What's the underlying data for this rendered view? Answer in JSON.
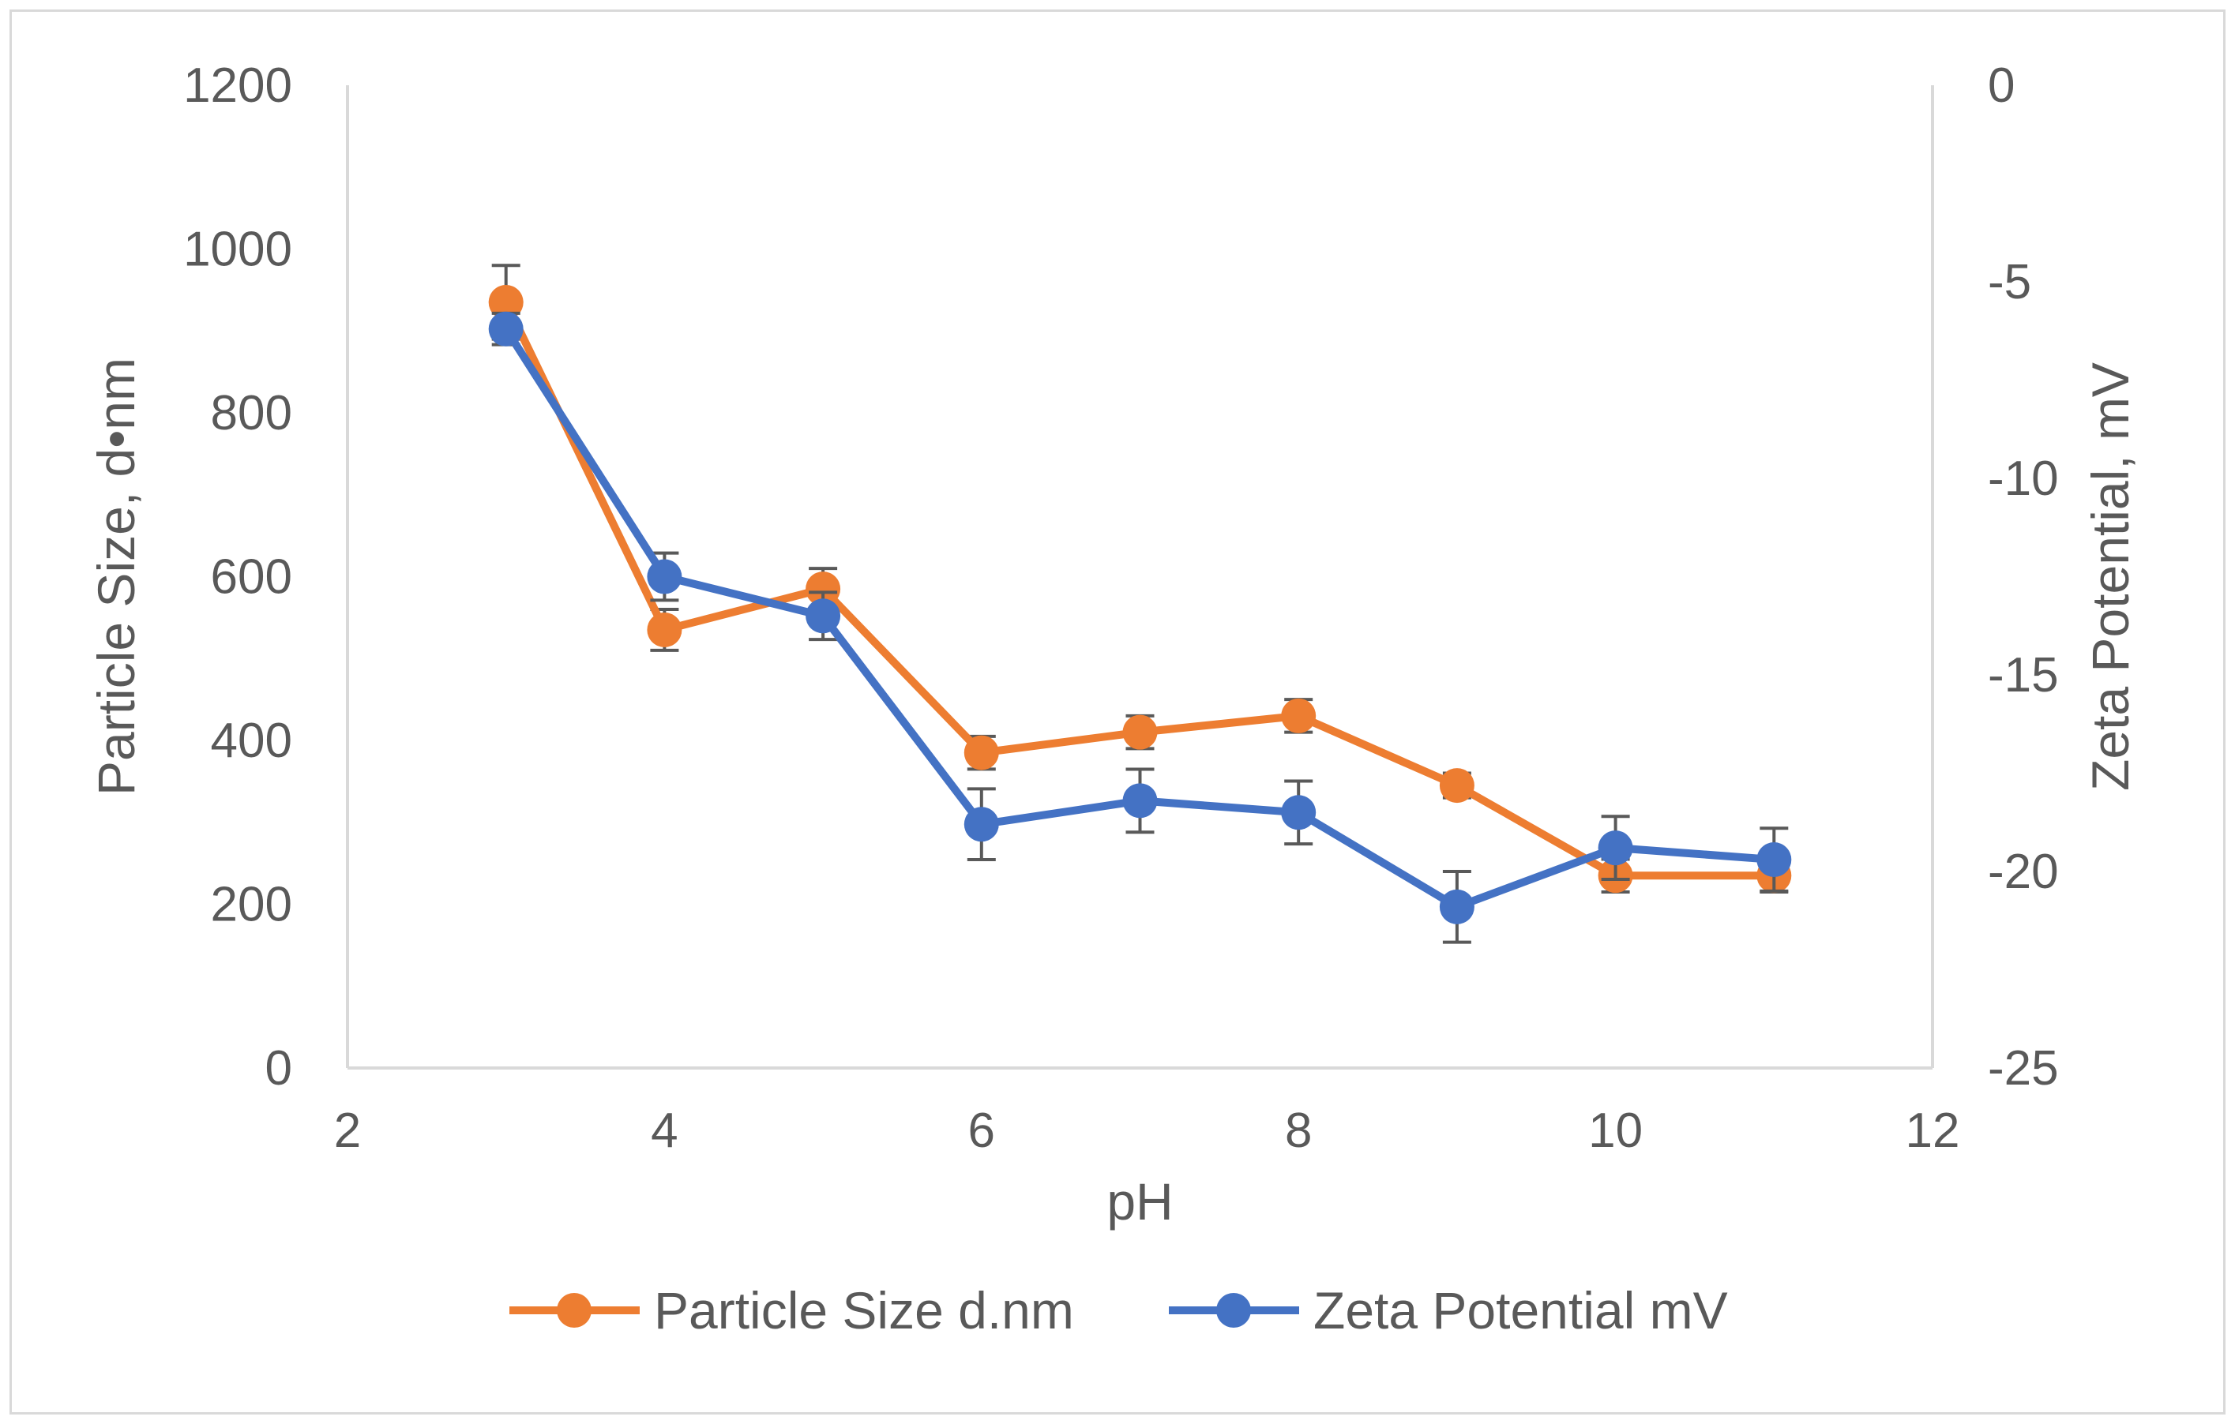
{
  "chart_data": {
    "type": "line",
    "title": "",
    "xlabel": "pH",
    "ylabel": "Particle Size, d•nm",
    "y2label": "Zeta Potential, mV",
    "xlim": [
      2,
      12
    ],
    "ylim": [
      0,
      1200
    ],
    "y2lim": [
      -25,
      0
    ],
    "x_ticks": [
      "2",
      "4",
      "6",
      "8",
      "10",
      "12"
    ],
    "y_ticks": [
      "0",
      "200",
      "400",
      "600",
      "800",
      "1000",
      "1200"
    ],
    "y2_ticks": [
      "-25",
      "-20",
      "-15",
      "-10",
      "-5",
      "0"
    ],
    "grid": false,
    "legend_position": "bottom",
    "series": [
      {
        "name": "Particle Size d.nm",
        "axis": "left",
        "color": "#ED7D31",
        "x": [
          3,
          4,
          5,
          6,
          7,
          8,
          9,
          10,
          11
        ],
        "values": [
          935,
          535,
          585,
          385,
          410,
          430,
          345,
          235,
          235
        ],
        "error": [
          45,
          25,
          25,
          20,
          20,
          20,
          15,
          20,
          20
        ]
      },
      {
        "name": "Zeta Potential mV",
        "axis": "right",
        "color": "#4472C4",
        "x": [
          3,
          4,
          5,
          6,
          7,
          8,
          9,
          10,
          11
        ],
        "values": [
          -6.2,
          -12.5,
          -13.5,
          -18.8,
          -18.2,
          -18.5,
          -20.9,
          -19.4,
          -19.7
        ],
        "error": [
          0.4,
          0.6,
          0.6,
          0.9,
          0.8,
          0.8,
          0.9,
          0.8,
          0.8
        ]
      }
    ]
  }
}
